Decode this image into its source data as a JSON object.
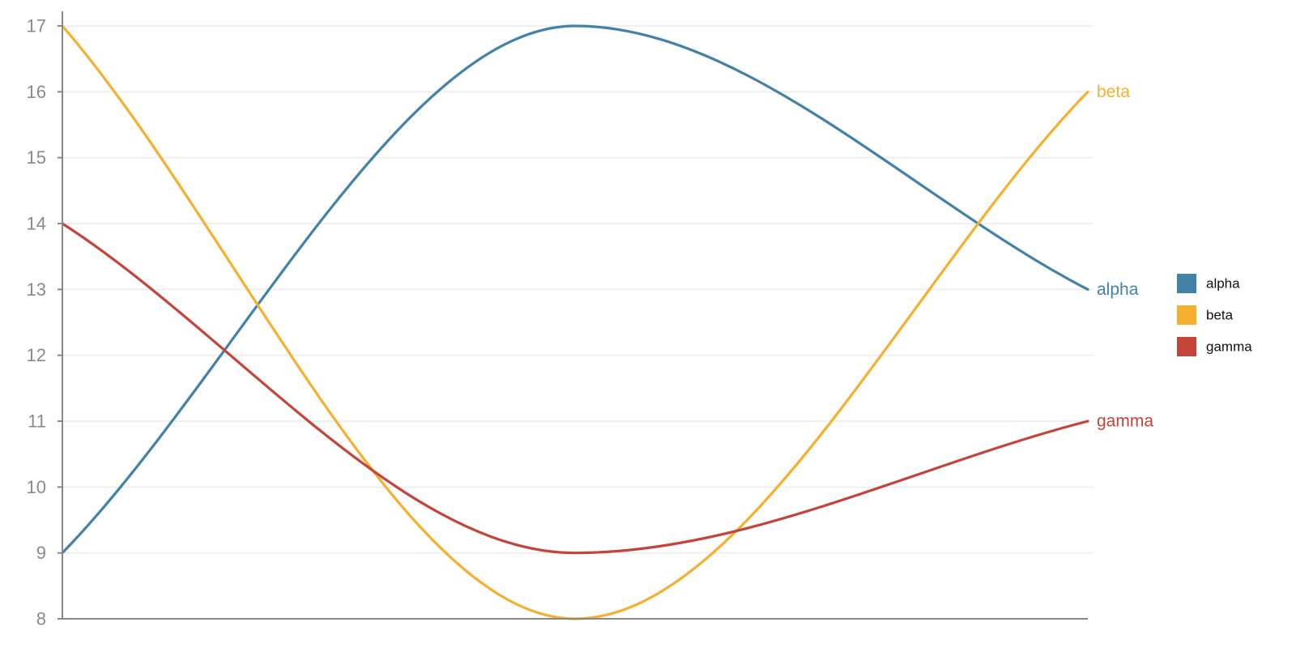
{
  "chart_data": {
    "type": "line",
    "title": "",
    "xlabel": "",
    "ylabel": "",
    "x": [
      0,
      1,
      2
    ],
    "ylim": [
      8,
      17
    ],
    "yticks": [
      8,
      9,
      10,
      11,
      12,
      13,
      14,
      15,
      16,
      17
    ],
    "grid": true,
    "legend": "right",
    "series": [
      {
        "name": "alpha",
        "values": [
          9,
          17,
          13
        ],
        "color": "#4382a8"
      },
      {
        "name": "beta",
        "values": [
          17,
          8,
          16
        ],
        "color": "#f5b02e"
      },
      {
        "name": "gamma",
        "values": [
          14,
          9,
          11
        ],
        "color": "#c5443a"
      }
    ]
  }
}
